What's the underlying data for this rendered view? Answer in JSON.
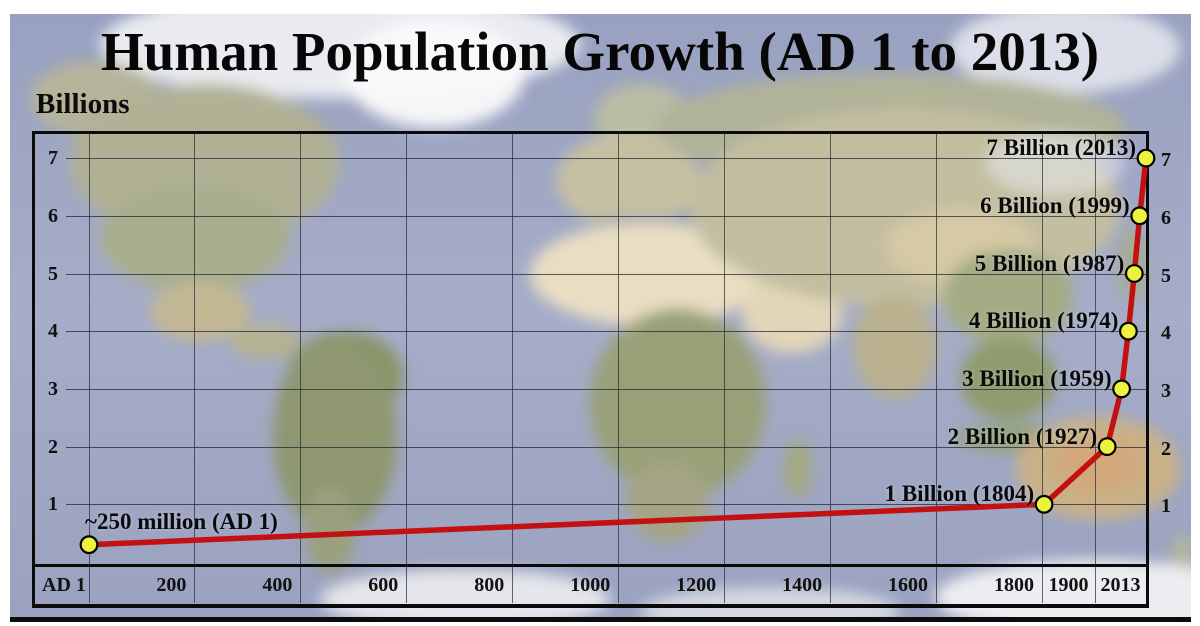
{
  "page": {
    "title": "Human Population Growth (AD 1 to 2013)",
    "y_axis_title": "Billions"
  },
  "colors": {
    "ocean": "#9fa7c4",
    "line": "#c31111",
    "marker_fill": "#edf23d",
    "marker_outline": "#000000",
    "grid": "#232834",
    "frame": "#0b0b0b",
    "text": "#0d0d0d"
  },
  "chart_data": {
    "type": "line",
    "title": "Human Population Growth (AD 1 to 2013)",
    "ylabel": "Billions",
    "ylim": [
      0,
      7.5
    ],
    "grid": true,
    "legend": "none",
    "x_axis_note": "non-linear timeline: 200-year steps from AD 1 to 1800, then 1900 and 2013",
    "x_tick_labels": [
      "AD 1",
      "200",
      "400",
      "600",
      "800",
      "1000",
      "1200",
      "1400",
      "1600",
      "1800",
      "1900",
      "2013"
    ],
    "y_ticks": [
      7,
      6,
      5,
      4,
      3,
      2,
      1
    ],
    "points": [
      {
        "year_label": "AD 1",
        "year": 1,
        "population_billions": 0.3,
        "label": "~250 million (AD 1)",
        "label_align": "left"
      },
      {
        "year_label": "1804",
        "year": 1804,
        "population_billions": 1,
        "label": "1 Billion (1804)",
        "label_align": "right"
      },
      {
        "year_label": "1927",
        "year": 1927,
        "population_billions": 2,
        "label": "2 Billion (1927)",
        "label_align": "right"
      },
      {
        "year_label": "1959",
        "year": 1959,
        "population_billions": 3,
        "label": "3 Billion (1959)",
        "label_align": "right"
      },
      {
        "year_label": "1974",
        "year": 1974,
        "population_billions": 4,
        "label": "4 Billion (1974)",
        "label_align": "right"
      },
      {
        "year_label": "1987",
        "year": 1987,
        "population_billions": 5,
        "label": "5 Billion (1987)",
        "label_align": "right"
      },
      {
        "year_label": "1999",
        "year": 1999,
        "population_billions": 6,
        "label": "6 Billion (1999)",
        "label_align": "right"
      },
      {
        "year_label": "2013",
        "year": 2013,
        "population_billions": 7,
        "label": "7 Billion (2013)",
        "label_align": "right"
      }
    ]
  }
}
